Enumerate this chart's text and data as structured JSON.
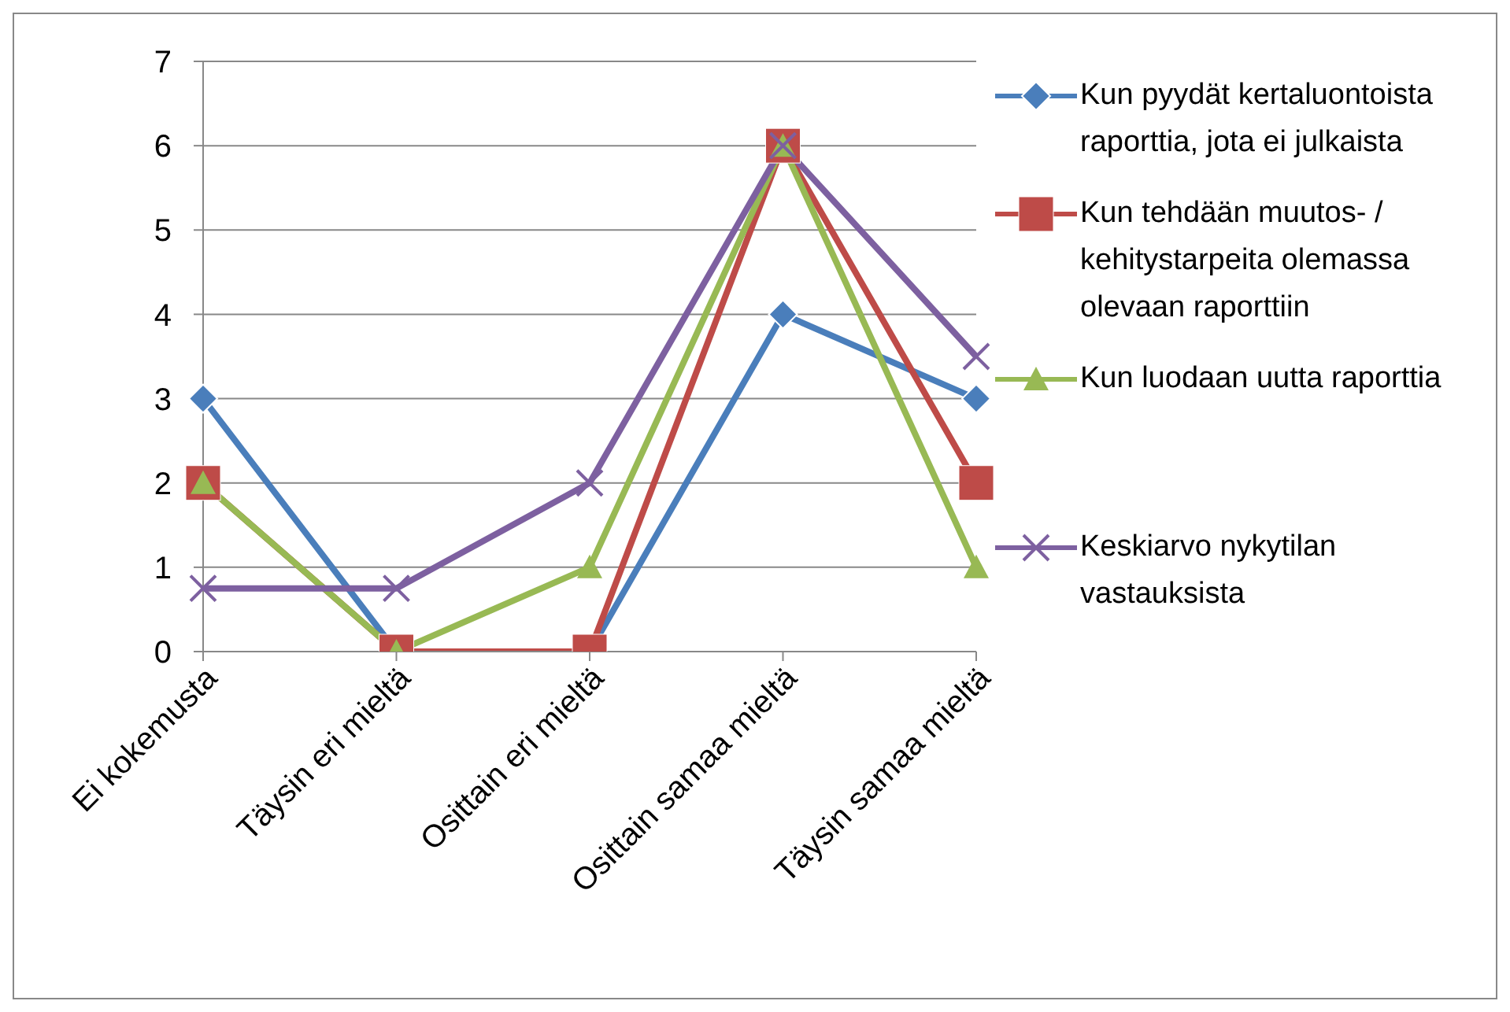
{
  "chart_data": {
    "type": "line",
    "categories": [
      "Ei kokemusta",
      "Täysin eri mieltä",
      "Osittain eri mieltä",
      "Osittain samaa mieltä",
      "Täysin samaa mieltä"
    ],
    "series": [
      {
        "name": "Kun pyydät kertaluontoista raporttia, jota ei julkaista",
        "color": "#4a7ebb",
        "marker": "diamond",
        "values": [
          3,
          0,
          0,
          4,
          3
        ]
      },
      {
        "name": "Kun tehdään muutos- / kehitystarpeita olemassa olevaan raporttiin",
        "color": "#be4b48",
        "marker": "square",
        "values": [
          2,
          0,
          0,
          6,
          2
        ]
      },
      {
        "name": "Kun luodaan uutta raporttia",
        "color": "#98b954",
        "marker": "triangle",
        "values": [
          2,
          0,
          1,
          6,
          1
        ]
      },
      {
        "name": "Keskiarvo nykytilan vastauksista",
        "color": "#7d60a0",
        "marker": "cross",
        "values": [
          0.75,
          0.75,
          2,
          6,
          3.5
        ]
      }
    ],
    "ylim": [
      0,
      7
    ],
    "yticks": [
      0,
      1,
      2,
      3,
      4,
      5,
      6,
      7
    ],
    "grid": "y",
    "legend": "right",
    "line_style": "solid"
  }
}
